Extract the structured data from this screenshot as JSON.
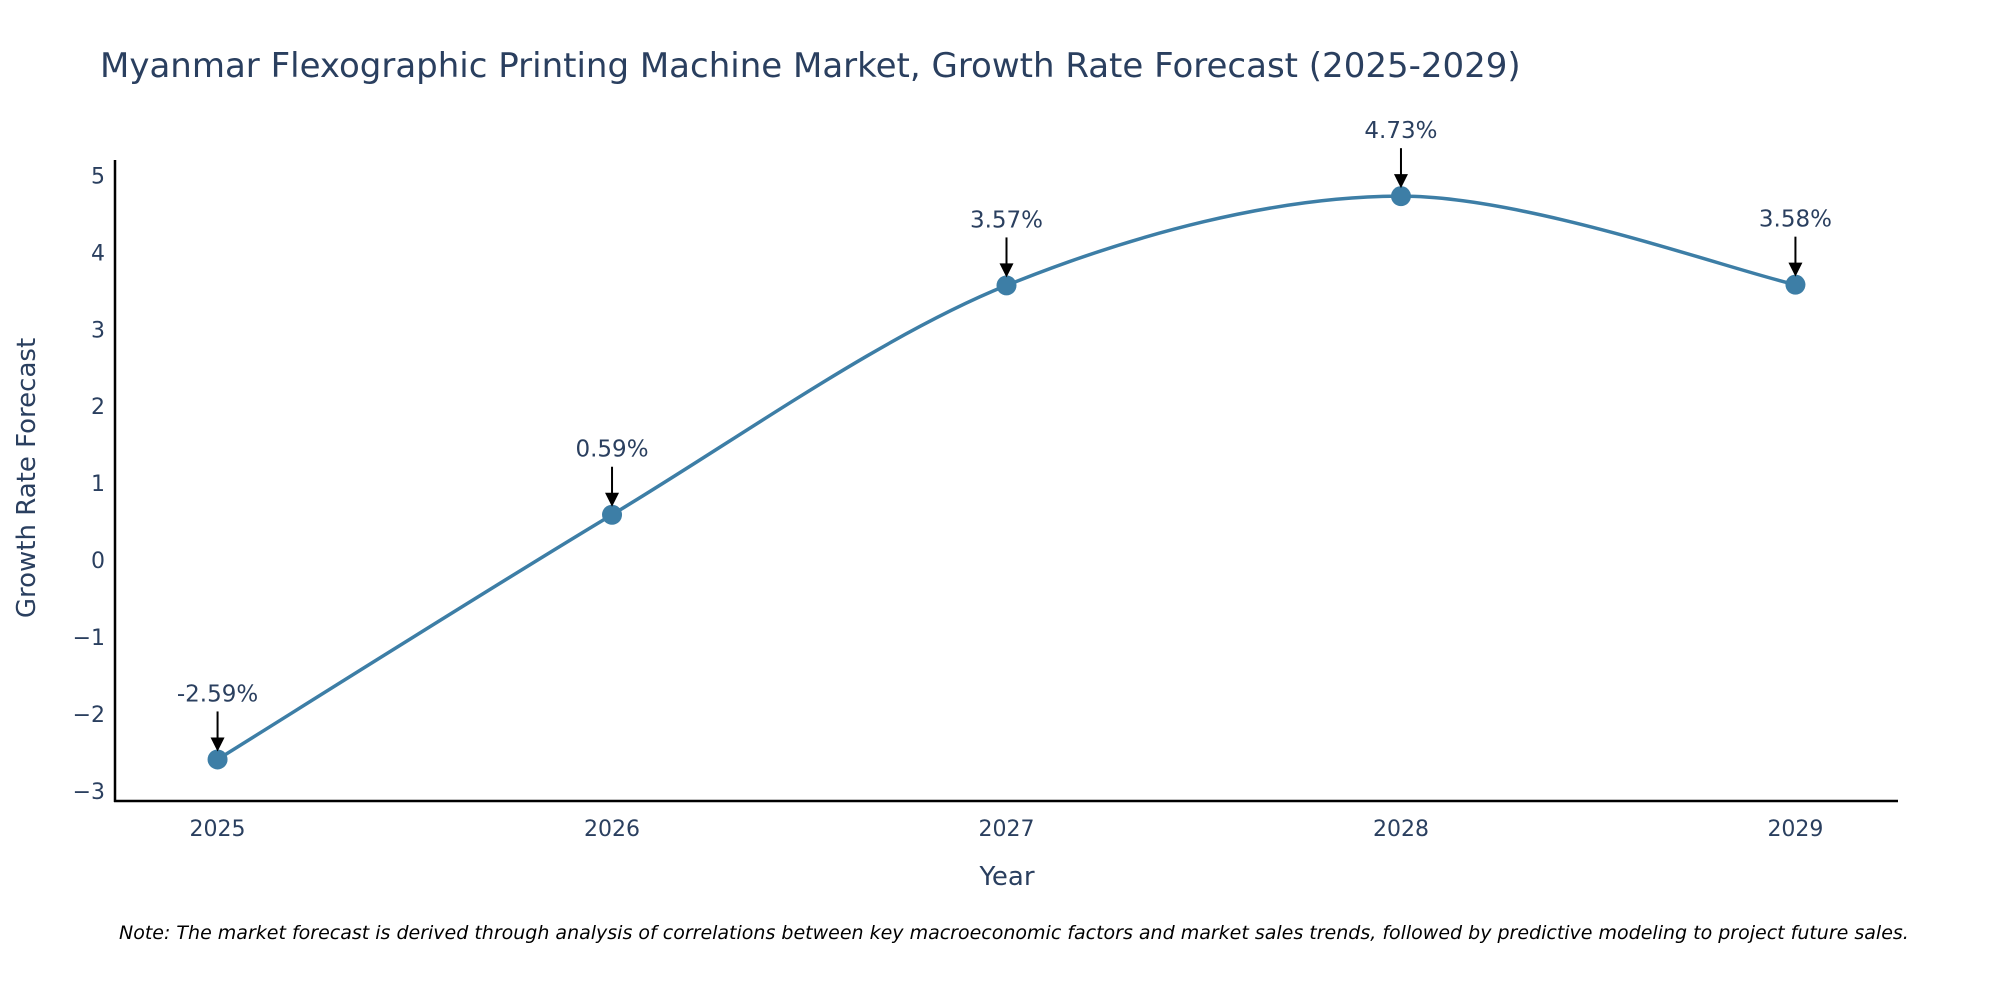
{
  "chart_data": {
    "type": "line",
    "title": "Myanmar Flexographic Printing Machine Market, Growth Rate Forecast (2025-2029)",
    "xlabel": "Year",
    "ylabel": "Growth Rate Forecast",
    "x": [
      "2025",
      "2026",
      "2027",
      "2028",
      "2029"
    ],
    "series": [
      {
        "name": "Growth Rate Forecast",
        "values": [
          -2.59,
          0.59,
          3.57,
          4.73,
          3.58
        ],
        "labels": [
          "-2.59%",
          "0.59%",
          "3.57%",
          "4.73%",
          "3.58%"
        ]
      }
    ],
    "yticks": [
      5,
      4,
      3,
      2,
      1,
      0,
      -1,
      -2,
      -3
    ],
    "ytick_labels": [
      "5",
      "4",
      "3",
      "2",
      "1",
      "0",
      "−1",
      "−2",
      "−3"
    ],
    "ylim": [
      -3.13,
      5.2
    ],
    "xlim": [
      2024.74,
      2029.26
    ],
    "grid": false,
    "line_color": "#3d7ea6",
    "marker_color": "#3d7ea6",
    "arrow_color": "#000000"
  },
  "note": "Note: The market forecast is derived through analysis of correlations between key macroeconomic factors and market sales trends, followed by predictive modeling to project future sales."
}
